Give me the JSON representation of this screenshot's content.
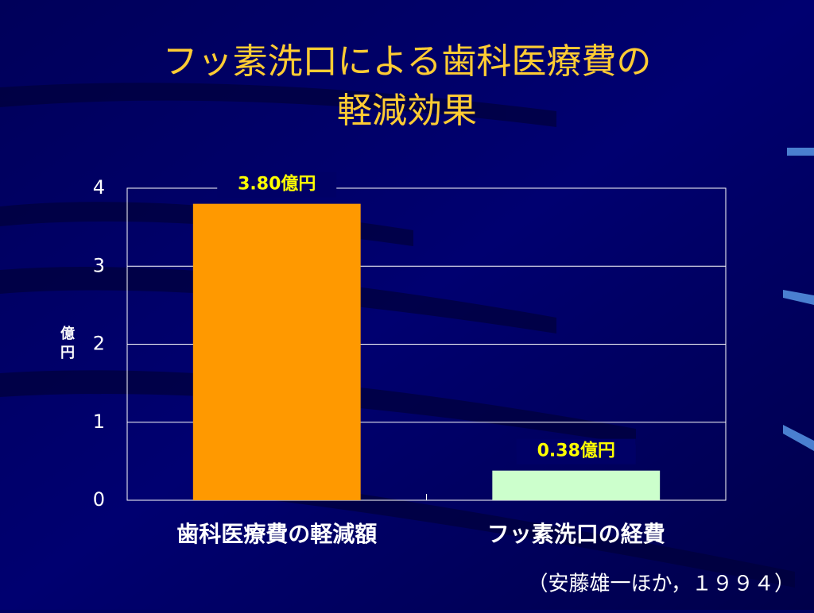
{
  "chart_data": {
    "type": "bar",
    "title": [
      "フッ素洗口による歯科医療費の",
      "軽減効果"
    ],
    "ylabel": "億円",
    "categories": [
      "歯科医療費の軽減額",
      "フッ素洗口の経費"
    ],
    "values": [
      3.8,
      0.38
    ],
    "value_labels": [
      "3.80億円",
      "0.38億円"
    ],
    "colors": [
      "#ff9900",
      "#ccffcc"
    ],
    "ylim": [
      0,
      4
    ],
    "yticks": [
      0,
      1,
      2,
      3,
      4
    ],
    "grid": true,
    "source": "（安藤雄一ほか，１９９４）"
  }
}
